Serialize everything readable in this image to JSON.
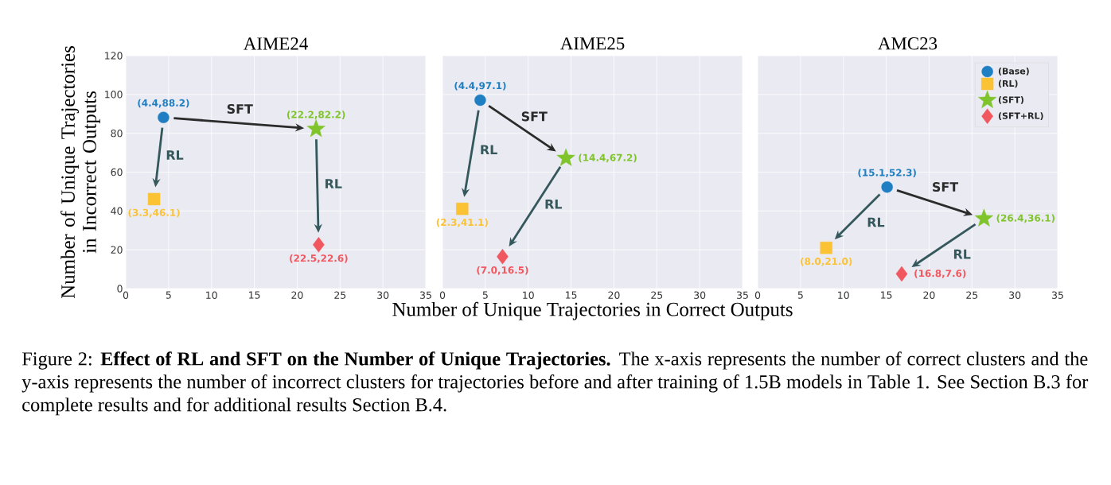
{
  "chart_data": [
    {
      "type": "scatter",
      "title": "AIME24",
      "ylabel": "Number of Unique Trajectories in Incorrect Outputs",
      "series": [
        {
          "color": "#1f7fc2",
          "marker": "circle",
          "x": [
            4.4
          ],
          "values": [
            88.2
          ],
          "value_labels": [
            "(4.4,88.2)"
          ]
        },
        {
          "color": "#fbc234",
          "marker": "square",
          "x": [
            3.3
          ],
          "values": [
            46.1
          ],
          "value_labels": [
            "(3.3,46.1)"
          ]
        },
        {
          "color": "#7fc42a",
          "marker": "star",
          "x": [
            22.2
          ],
          "values": [
            82.2
          ],
          "value_labels": [
            "(22.2,82.2)"
          ]
        },
        {
          "color": "#f0575e",
          "marker": "diamond",
          "x": [
            22.5
          ],
          "values": [
            22.6
          ],
          "value_labels": [
            "(22.5,22.6)"
          ]
        }
      ],
      "annotations": [
        "SFT",
        "RL",
        "RL",
        "Figure 2: **Effect of RL and SFT on the Number of Unique Trajectories.** The x-axis represents the number of correct clusters and the y-axis represents the number of incorrect clusters for trajectories before and after training of 1.5B models in Table 1. See Section B.3 for complete results and for additional results Section B.4."
      ],
      "xlim": [
        0,
        35
      ],
      "ylim": [
        0,
        120
      ],
      "xticks": [
        0,
        5,
        10,
        15,
        20,
        25,
        30,
        35
      ],
      "yticks": [
        0,
        20,
        40,
        60,
        80,
        100,
        120
      ],
      "grid": true
    },
    {
      "type": "scatter",
      "title": "AIME25",
      "xlabel": "Number of Unique Trajectories in Correct Outputs",
      "series": [
        {
          "color": "#1f7fc2",
          "marker": "circle",
          "x": [
            4.4
          ],
          "values": [
            97.1
          ],
          "value_labels": [
            "(4.4,97.1)"
          ]
        },
        {
          "color": "#fbc234",
          "marker": "square",
          "x": [
            2.3
          ],
          "values": [
            41.1
          ],
          "value_labels": [
            "(2.3,41.1)"
          ]
        },
        {
          "color": "#7fc42a",
          "marker": "star",
          "x": [
            14.4
          ],
          "values": [
            67.2
          ],
          "value_labels": [
            "(14.4,67.2)"
          ]
        },
        {
          "color": "#f0575e",
          "marker": "diamond",
          "x": [
            7.0
          ],
          "values": [
            16.5
          ],
          "value_labels": [
            "(7.0,16.5)"
          ]
        }
      ],
      "annotations": [
        "SFT",
        "RL",
        "RL"
      ],
      "xlim": [
        0,
        35
      ],
      "ylim": [
        0,
        120
      ],
      "xticks": [
        0,
        5,
        10,
        15,
        20,
        25,
        30,
        35
      ],
      "yticks": [
        0,
        20,
        40,
        60,
        80,
        100,
        120
      ],
      "grid": true,
      "tick_labels": "x"
    },
    {
      "type": "scatter",
      "title": "AMC23",
      "legend": "top right",
      "series": [
        {
          "name": "(Base)",
          "color": "#1f7fc2",
          "marker": "circle",
          "x": [
            15.1
          ],
          "values": [
            52.3
          ],
          "value_labels": [
            "(15.1,52.3)"
          ]
        },
        {
          "name": "(RL)",
          "color": "#fbc234",
          "marker": "square",
          "x": [
            8.0
          ],
          "values": [
            21.0
          ],
          "value_labels": [
            "(8.0,21.0)"
          ]
        },
        {
          "name": "(SFT)",
          "color": "#7fc42a",
          "marker": "star",
          "x": [
            26.4
          ],
          "values": [
            36.1
          ],
          "value_labels": [
            "(26.4,36.1)"
          ]
        },
        {
          "name": "(SFT+RL)",
          "color": "#f0575e",
          "marker": "diamond",
          "x": [
            16.8
          ],
          "values": [
            7.6
          ],
          "value_labels": [
            "(16.8,7.6)"
          ]
        }
      ],
      "annotations": [
        "SFT",
        "RL",
        "RL"
      ],
      "xlim": [
        0,
        35
      ],
      "ylim": [
        0,
        120
      ],
      "xticks": [
        0,
        5,
        10,
        15,
        20,
        25,
        30,
        35
      ],
      "yticks": [
        0,
        20,
        40,
        60,
        80,
        100,
        120
      ],
      "grid": true,
      "tick_labels": "x"
    }
  ]
}
